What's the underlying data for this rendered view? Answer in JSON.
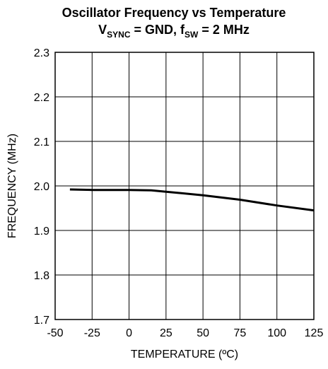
{
  "chart_data": {
    "type": "line",
    "title": "Oscillator Frequency vs Temperature",
    "subtitle_parts": {
      "v": "V",
      "v_sub": "SYNC",
      "mid": " = GND, f",
      "f_sub": "SW",
      "end": " = 2 MHz"
    },
    "xlabel": "TEMPERATURE (ºC)",
    "ylabel": "FREQUENCY (MHz)",
    "xlim": [
      -50,
      125
    ],
    "ylim": [
      1.7,
      2.3
    ],
    "xticks": [
      -50,
      -25,
      0,
      25,
      50,
      75,
      100,
      125
    ],
    "yticks": [
      1.7,
      1.8,
      1.9,
      2.0,
      2.1,
      2.2,
      2.3
    ],
    "xtick_labels": [
      "-50",
      "-25",
      "0",
      "25",
      "50",
      "75",
      "100",
      "125"
    ],
    "ytick_labels": [
      "1.7",
      "1.8",
      "1.9",
      "2.0",
      "2.1",
      "2.2",
      "2.3"
    ],
    "grid": true,
    "series": [
      {
        "x": [
          -40,
          -25,
          0,
          15,
          25,
          50,
          75,
          100,
          125
        ],
        "y": [
          1.992,
          1.991,
          1.991,
          1.99,
          1.987,
          1.979,
          1.969,
          1.956,
          1.945
        ]
      }
    ]
  }
}
